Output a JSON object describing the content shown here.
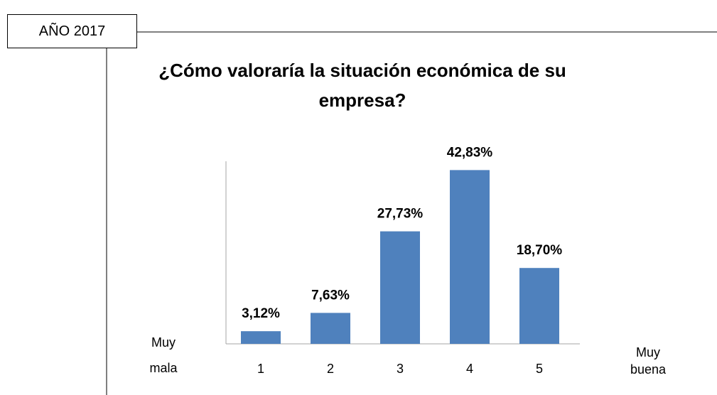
{
  "header_label": "AÑO 2017",
  "chart_data": {
    "type": "bar",
    "title": "¿Cómo valoraría la situación económica de su empresa?",
    "categories": [
      "1",
      "2",
      "3",
      "4",
      "5"
    ],
    "values": [
      3.12,
      7.63,
      27.73,
      42.83,
      18.7
    ],
    "value_labels": [
      "3,12%",
      "7,63%",
      "27,73%",
      "42,83%",
      "18,70%"
    ],
    "color": "#4f81bd",
    "ylim": [
      0,
      45
    ],
    "low_label": [
      "Muy",
      "mala"
    ],
    "high_label": [
      "Muy",
      "buena"
    ]
  }
}
